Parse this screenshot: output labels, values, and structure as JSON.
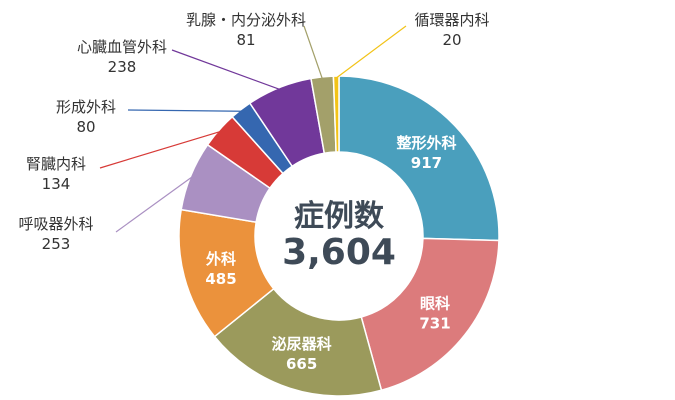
{
  "chart_data": {
    "type": "pie",
    "variant": "donut",
    "center_title": "症例数",
    "center_value": "3,604",
    "start": "top",
    "direction": "clockwise",
    "slices": [
      {
        "label": "整形外科",
        "value": 917,
        "value_text": "917",
        "color": "#4a9fbd",
        "label_position": "inside"
      },
      {
        "label": "眼科",
        "value": 731,
        "value_text": "731",
        "color": "#dc7b7c",
        "label_position": "inside"
      },
      {
        "label": "泌尿器科",
        "value": 665,
        "value_text": "665",
        "color": "#9b9a5c",
        "label_position": "inside"
      },
      {
        "label": "外科",
        "value": 485,
        "value_text": "485",
        "color": "#eb923c",
        "label_position": "inside"
      },
      {
        "label": "呼吸器外科",
        "value": 253,
        "value_text": "253",
        "color": "#aa90c2",
        "label_position": "outside"
      },
      {
        "label": "腎臓内科",
        "value": 134,
        "value_text": "134",
        "color": "#d73a37",
        "label_position": "outside"
      },
      {
        "label": "形成外科",
        "value": 80,
        "value_text": "80",
        "color": "#3567b0",
        "label_position": "outside"
      },
      {
        "label": "心臓血管外科",
        "value": 238,
        "value_text": "238",
        "color": "#71389a",
        "label_position": "outside"
      },
      {
        "label": "乳腺・内分泌外科",
        "value": 81,
        "value_text": "81",
        "color": "#a3a06a",
        "label_position": "outside"
      },
      {
        "label": "循環器内科",
        "value": 20,
        "value_text": "20",
        "color": "#f2c318",
        "label_position": "outside"
      }
    ]
  }
}
